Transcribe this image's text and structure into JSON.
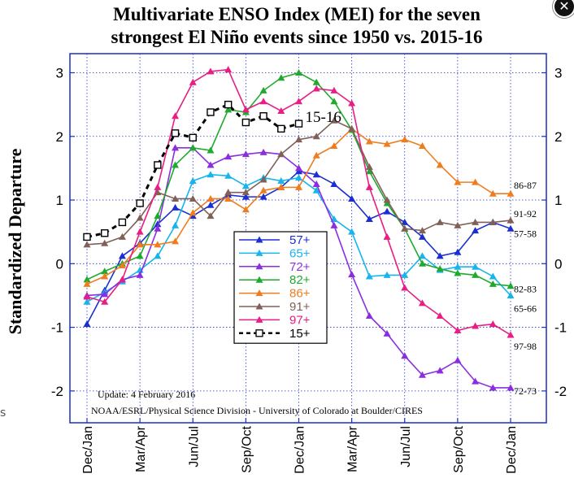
{
  "window": {
    "close_label": "✕",
    "close_icon": "close-icon"
  },
  "stray_char": "s",
  "chart_data": {
    "type": "line",
    "title_line1": "Multivariate ENSO Index (MEI) for the seven",
    "title_line2": "strongest El Niño events since 1950 vs. 2015-16",
    "ylabel": "Standardized Departure",
    "xlabel": "",
    "ylim": [
      -2.5,
      3.3
    ],
    "yticks": [
      -2,
      -1,
      0,
      1,
      2,
      3
    ],
    "ytick_labels": [
      "-2",
      "-1",
      "0",
      "1",
      "2",
      "3"
    ],
    "xlim": [
      0,
      24
    ],
    "xticks": [
      0,
      3,
      6,
      9,
      12,
      15,
      18,
      21,
      24
    ],
    "xtick_labels": [
      "Dec/Jan",
      "Mar/Apr",
      "Jun/Jul",
      "Sep/Oct",
      "Dec/Jan",
      "Mar/Apr",
      "Jun/Jul",
      "Sep/Oct",
      "Dec/Jan"
    ],
    "grid": true,
    "legend_position": "center",
    "update_text": "Update: 4 February 2016",
    "credit_text": "NOAA/ESRL/Physical Science Division - University of Colorado at Boulder/CIRES",
    "series": [
      {
        "name": "57+",
        "end_label": "57-58",
        "color": "#1b2fd0",
        "marker": "triangle",
        "values": [
          -0.95,
          -0.42,
          0.12,
          0.32,
          0.62,
          0.88,
          0.75,
          0.92,
          1.08,
          1.05,
          1.05,
          1.2,
          1.45,
          1.4,
          1.25,
          1.02,
          0.7,
          0.82,
          0.65,
          0.42,
          0.12,
          0.18,
          0.52,
          0.65,
          0.55
        ]
      },
      {
        "name": "65+",
        "end_label": "65-66",
        "color": "#18b4ee",
        "marker": "triangle",
        "values": [
          -0.6,
          -0.45,
          -0.28,
          -0.1,
          0.12,
          0.6,
          1.3,
          1.4,
          1.38,
          1.22,
          1.35,
          1.3,
          1.35,
          1.15,
          0.7,
          0.5,
          -0.2,
          -0.18,
          -0.18,
          0.12,
          -0.1,
          -0.05,
          -0.05,
          -0.2,
          -0.5
        ]
      },
      {
        "name": "72+",
        "end_label": "72-73",
        "color": "#8a2ee0",
        "marker": "triangle",
        "values": [
          -0.5,
          -0.48,
          -0.25,
          -0.18,
          0.55,
          1.82,
          1.82,
          1.55,
          1.68,
          1.72,
          1.75,
          1.72,
          1.5,
          1.25,
          0.6,
          -0.17,
          -0.82,
          -1.1,
          -1.45,
          -1.75,
          -1.68,
          -1.52,
          -1.85,
          -1.95,
          -1.95
        ]
      },
      {
        "name": "82+",
        "end_label": "82-83",
        "color": "#1faa2e",
        "marker": "triangle",
        "values": [
          -0.25,
          -0.12,
          0.0,
          0.12,
          0.75,
          1.55,
          1.82,
          1.78,
          2.42,
          2.38,
          2.72,
          2.92,
          3.0,
          2.85,
          2.55,
          2.1,
          1.45,
          0.95,
          0.55,
          0.0,
          -0.08,
          -0.15,
          -0.18,
          -0.32,
          -0.35
        ]
      },
      {
        "name": "86+",
        "end_label": "86-87",
        "color": "#ef7d20",
        "marker": "triangle",
        "values": [
          -0.32,
          -0.2,
          -0.03,
          0.3,
          0.3,
          0.35,
          0.8,
          1.02,
          1.02,
          0.85,
          1.15,
          1.2,
          1.2,
          1.7,
          1.85,
          2.12,
          1.92,
          1.88,
          1.95,
          1.85,
          1.55,
          1.28,
          1.28,
          1.1,
          1.1
        ]
      },
      {
        "name": "91+",
        "end_label": "91-92",
        "color": "#806057",
        "marker": "triangle",
        "values": [
          0.3,
          0.32,
          0.42,
          0.72,
          1.12,
          1.02,
          1.02,
          0.75,
          1.12,
          1.12,
          1.32,
          1.72,
          1.95,
          2.0,
          2.25,
          2.12,
          1.52,
          1.0,
          0.55,
          0.52,
          0.65,
          0.6,
          0.65,
          0.65,
          0.68
        ]
      },
      {
        "name": "97+",
        "end_label": "97-98",
        "color": "#e81e84",
        "marker": "triangle",
        "values": [
          -0.52,
          -0.6,
          -0.25,
          0.5,
          1.2,
          2.32,
          2.85,
          3.02,
          3.05,
          2.42,
          2.55,
          2.4,
          2.55,
          2.75,
          2.72,
          2.52,
          1.2,
          0.42,
          -0.38,
          -0.62,
          -0.82,
          -1.05,
          -0.98,
          -0.95,
          -1.12
        ]
      },
      {
        "name": "15+",
        "end_label": "15-16",
        "color": "#000000",
        "marker": "square",
        "dashed": true,
        "values": [
          0.42,
          0.48,
          0.65,
          0.95,
          1.55,
          2.05,
          1.98,
          2.38,
          2.5,
          2.22,
          2.32,
          2.12,
          2.2
        ]
      }
    ]
  }
}
